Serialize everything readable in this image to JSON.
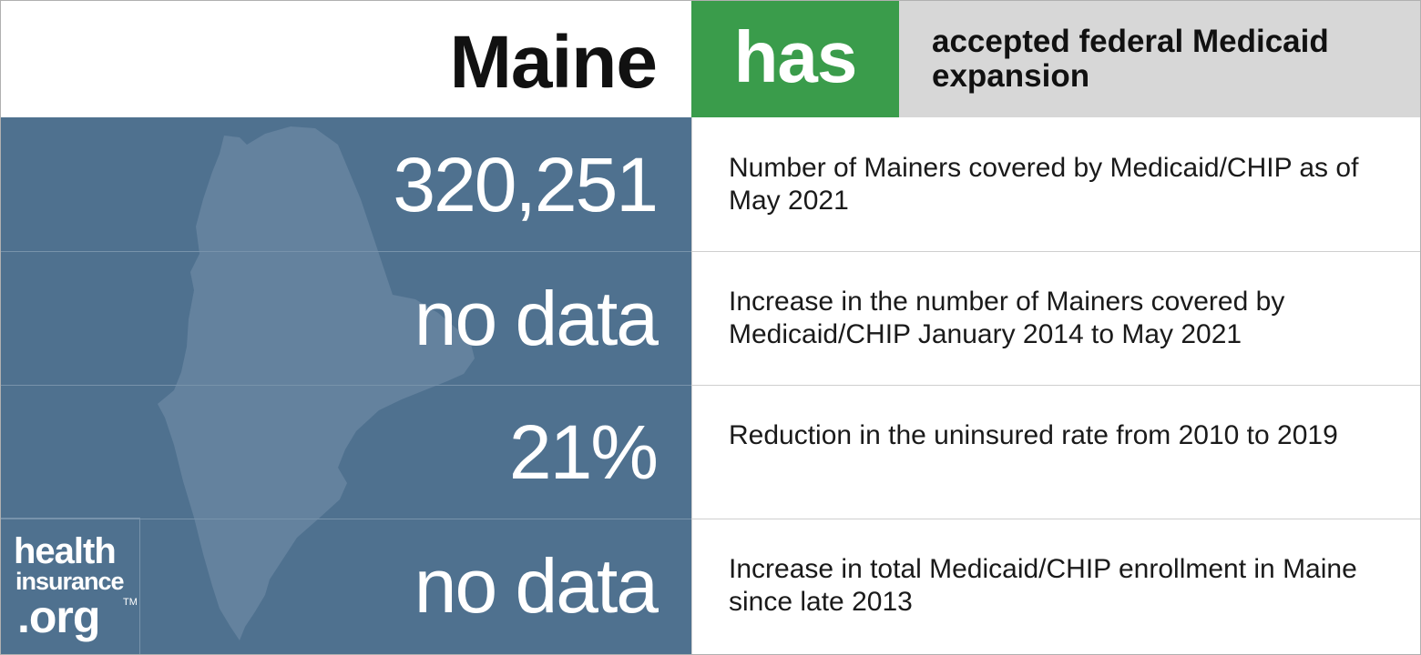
{
  "header": {
    "state": "Maine",
    "status_word": "has",
    "status_desc": "accepted federal Medicaid expansion",
    "status_color": "#3a9c4b"
  },
  "stats": [
    {
      "value": "320,251",
      "label": "Number of Mainers covered by Medicaid/CHIP as of May 2021"
    },
    {
      "value": "no data",
      "label": "Increase in the number of Mainers covered by Medicaid/CHIP January 2014 to May 2021"
    },
    {
      "value": "21%",
      "label": "Reduction in the uninsured rate from 2010 to 2019"
    },
    {
      "value": "no data",
      "label": "Increase in total Medicaid/CHIP enrollment in Maine since late 2013"
    }
  ],
  "logo": {
    "line1": "health",
    "line2": "insurance",
    "line3": ".org",
    "trademark": "TM"
  },
  "colors": {
    "panel": "#4f718f",
    "map": "#64829e",
    "status_desc_bg": "#d7d7d7"
  },
  "icons": {
    "map": "maine-state-outline"
  }
}
